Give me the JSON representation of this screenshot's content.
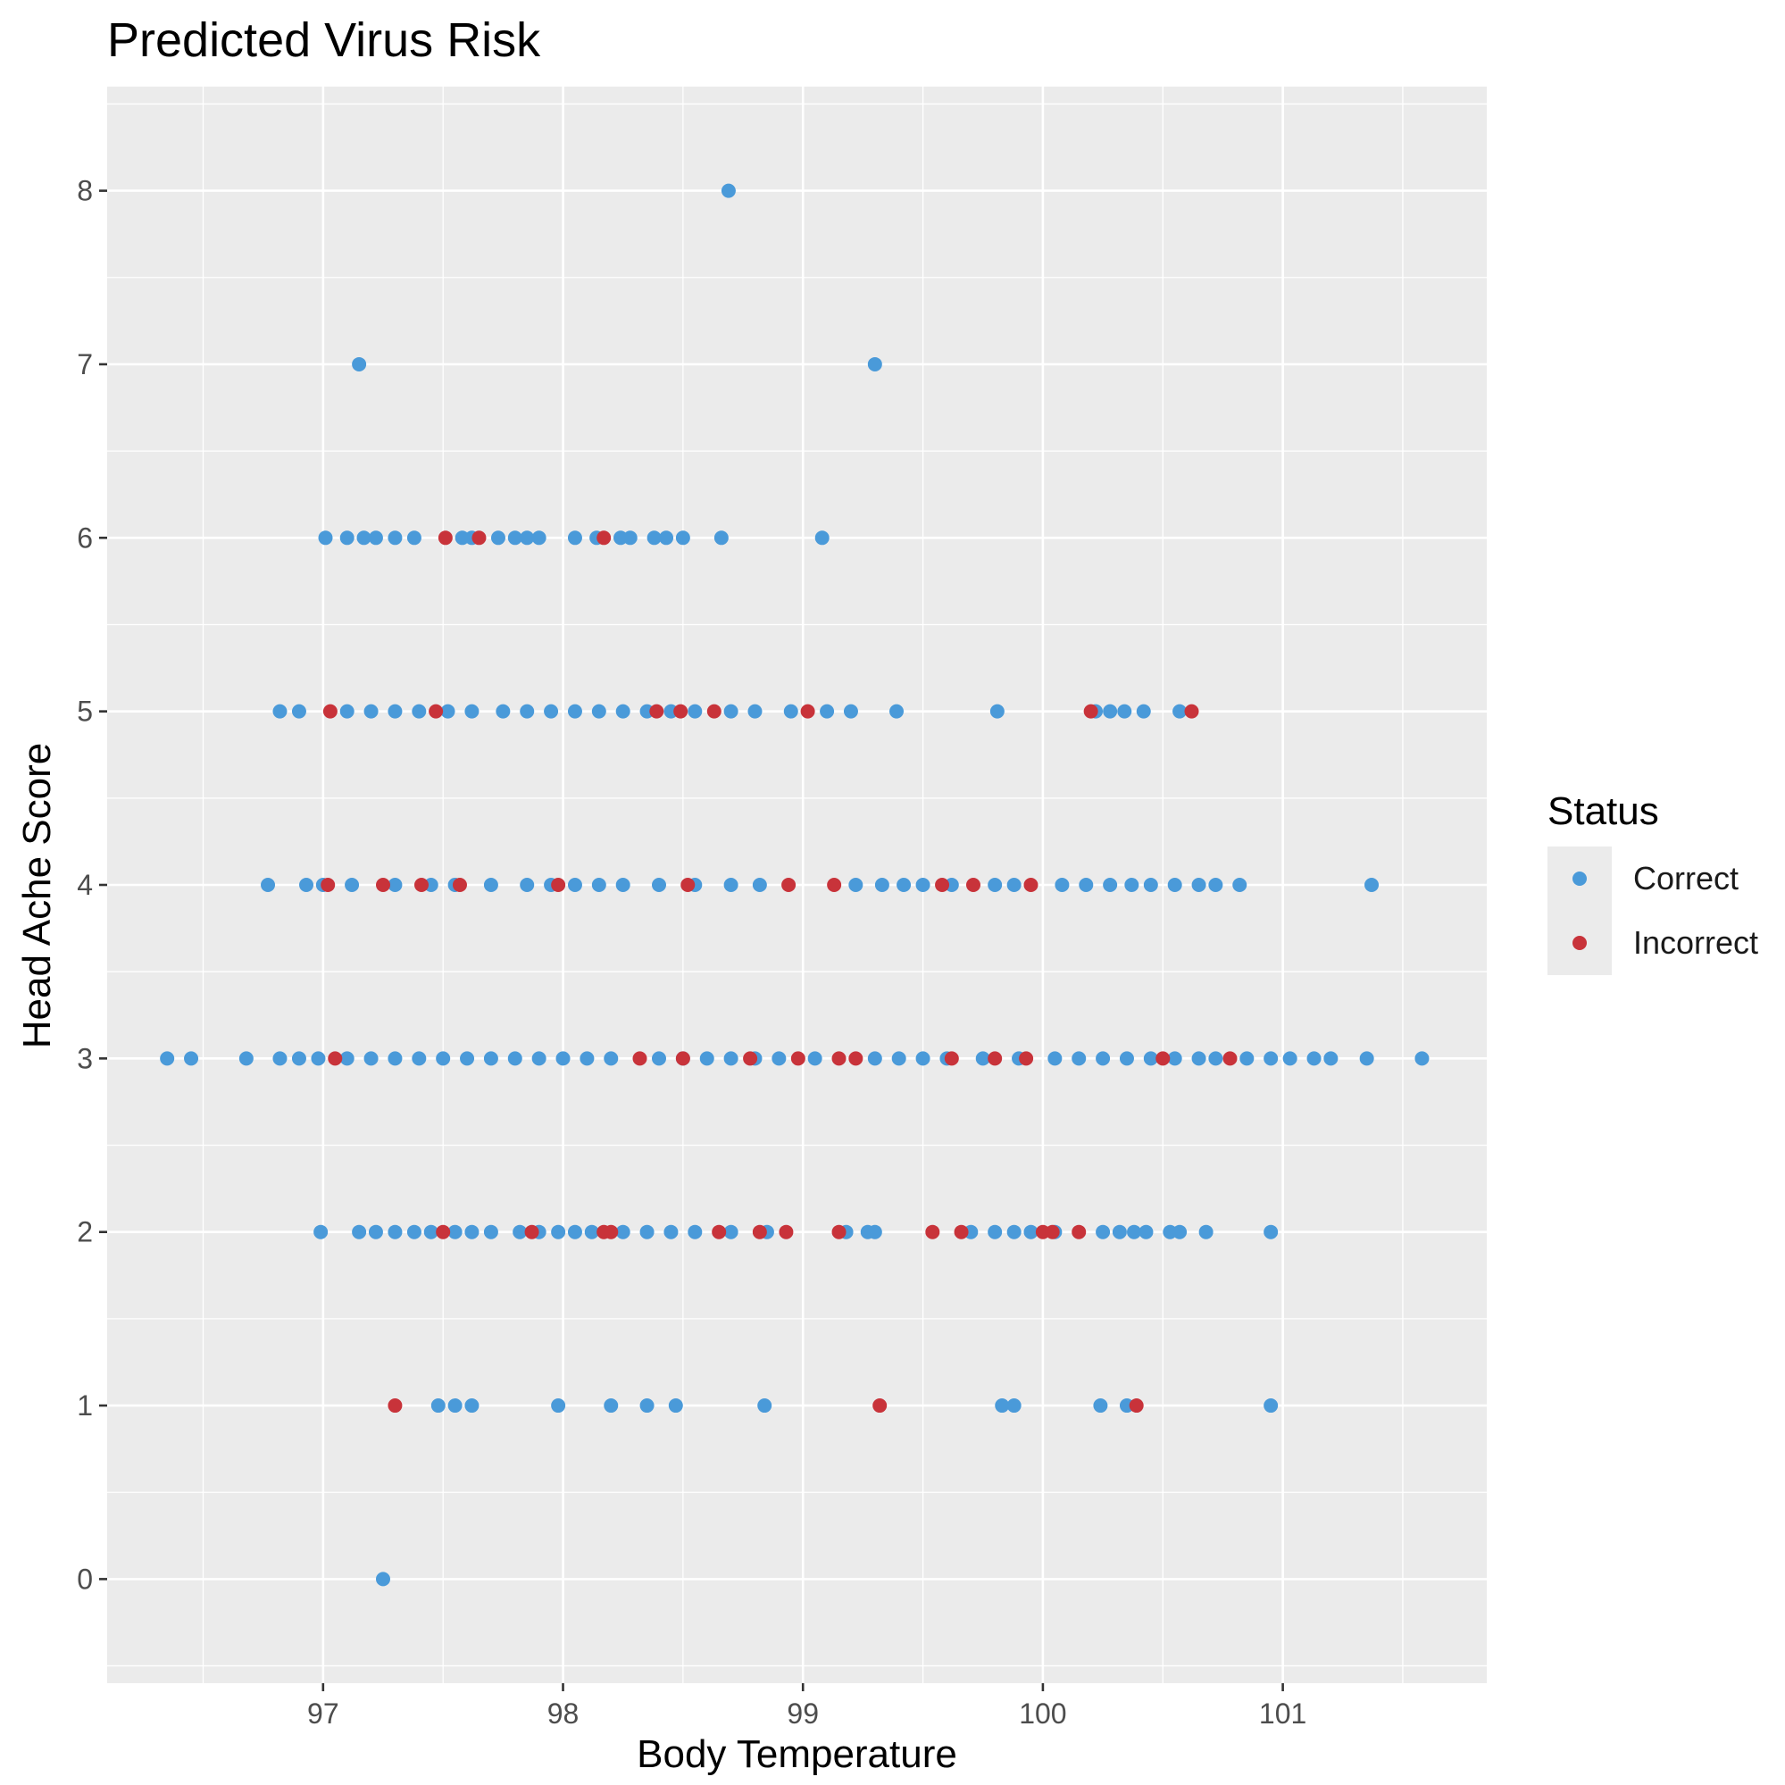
{
  "chart_data": {
    "type": "scatter",
    "title": "Predicted Virus Risk",
    "xlabel": "Body Temperature",
    "ylabel": "Head Ache Score",
    "xlim": [
      96.1,
      101.85
    ],
    "ylim": [
      -0.6,
      8.6
    ],
    "xticks": [
      97,
      98,
      99,
      100,
      101
    ],
    "yticks": [
      0,
      1,
      2,
      3,
      4,
      5,
      6,
      7,
      8
    ],
    "grid": true,
    "legend": {
      "title": "Status",
      "position": "right",
      "entries": [
        {
          "label": "Correct",
          "color": "#4a9ad9"
        },
        {
          "label": "Incorrect",
          "color": "#c8333a"
        }
      ]
    },
    "series": [
      {
        "name": "Correct",
        "color": "#4a9ad9",
        "points": [
          [
            97.25,
            0
          ],
          [
            97.48,
            1
          ],
          [
            97.55,
            1
          ],
          [
            97.62,
            1
          ],
          [
            97.98,
            1
          ],
          [
            98.2,
            1
          ],
          [
            98.35,
            1
          ],
          [
            98.47,
            1
          ],
          [
            98.84,
            1
          ],
          [
            99.83,
            1
          ],
          [
            99.88,
            1
          ],
          [
            100.24,
            1
          ],
          [
            100.35,
            1
          ],
          [
            100.95,
            1
          ],
          [
            96.99,
            2
          ],
          [
            97.15,
            2
          ],
          [
            97.22,
            2
          ],
          [
            97.3,
            2
          ],
          [
            97.38,
            2
          ],
          [
            97.45,
            2
          ],
          [
            97.55,
            2
          ],
          [
            97.62,
            2
          ],
          [
            97.7,
            2
          ],
          [
            97.82,
            2
          ],
          [
            97.9,
            2
          ],
          [
            97.98,
            2
          ],
          [
            98.05,
            2
          ],
          [
            98.12,
            2
          ],
          [
            98.25,
            2
          ],
          [
            98.35,
            2
          ],
          [
            98.45,
            2
          ],
          [
            98.55,
            2
          ],
          [
            98.7,
            2
          ],
          [
            98.85,
            2
          ],
          [
            99.18,
            2
          ],
          [
            99.27,
            2
          ],
          [
            99.3,
            2
          ],
          [
            99.7,
            2
          ],
          [
            99.8,
            2
          ],
          [
            99.88,
            2
          ],
          [
            99.95,
            2
          ],
          [
            100.05,
            2
          ],
          [
            100.25,
            2
          ],
          [
            100.32,
            2
          ],
          [
            100.38,
            2
          ],
          [
            100.43,
            2
          ],
          [
            100.53,
            2
          ],
          [
            100.57,
            2
          ],
          [
            100.68,
            2
          ],
          [
            100.95,
            2
          ],
          [
            96.35,
            3
          ],
          [
            96.45,
            3
          ],
          [
            96.68,
            3
          ],
          [
            96.82,
            3
          ],
          [
            96.9,
            3
          ],
          [
            96.98,
            3
          ],
          [
            97.1,
            3
          ],
          [
            97.2,
            3
          ],
          [
            97.3,
            3
          ],
          [
            97.4,
            3
          ],
          [
            97.5,
            3
          ],
          [
            97.6,
            3
          ],
          [
            97.7,
            3
          ],
          [
            97.8,
            3
          ],
          [
            97.9,
            3
          ],
          [
            98.0,
            3
          ],
          [
            98.1,
            3
          ],
          [
            98.2,
            3
          ],
          [
            98.4,
            3
          ],
          [
            98.5,
            3
          ],
          [
            98.6,
            3
          ],
          [
            98.7,
            3
          ],
          [
            98.8,
            3
          ],
          [
            98.9,
            3
          ],
          [
            99.05,
            3
          ],
          [
            99.3,
            3
          ],
          [
            99.4,
            3
          ],
          [
            99.5,
            3
          ],
          [
            99.6,
            3
          ],
          [
            99.75,
            3
          ],
          [
            99.9,
            3
          ],
          [
            100.05,
            3
          ],
          [
            100.15,
            3
          ],
          [
            100.25,
            3
          ],
          [
            100.35,
            3
          ],
          [
            100.45,
            3
          ],
          [
            100.55,
            3
          ],
          [
            100.65,
            3
          ],
          [
            100.72,
            3
          ],
          [
            100.85,
            3
          ],
          [
            100.95,
            3
          ],
          [
            101.03,
            3
          ],
          [
            101.13,
            3
          ],
          [
            101.2,
            3
          ],
          [
            101.35,
            3
          ],
          [
            101.58,
            3
          ],
          [
            96.77,
            4
          ],
          [
            96.93,
            4
          ],
          [
            97.0,
            4
          ],
          [
            97.12,
            4
          ],
          [
            97.3,
            4
          ],
          [
            97.45,
            4
          ],
          [
            97.55,
            4
          ],
          [
            97.7,
            4
          ],
          [
            97.85,
            4
          ],
          [
            97.95,
            4
          ],
          [
            98.05,
            4
          ],
          [
            98.15,
            4
          ],
          [
            98.25,
            4
          ],
          [
            98.4,
            4
          ],
          [
            98.55,
            4
          ],
          [
            98.7,
            4
          ],
          [
            98.82,
            4
          ],
          [
            99.22,
            4
          ],
          [
            99.33,
            4
          ],
          [
            99.42,
            4
          ],
          [
            99.5,
            4
          ],
          [
            99.62,
            4
          ],
          [
            99.8,
            4
          ],
          [
            99.88,
            4
          ],
          [
            100.08,
            4
          ],
          [
            100.18,
            4
          ],
          [
            100.28,
            4
          ],
          [
            100.37,
            4
          ],
          [
            100.45,
            4
          ],
          [
            100.55,
            4
          ],
          [
            100.65,
            4
          ],
          [
            100.72,
            4
          ],
          [
            100.82,
            4
          ],
          [
            101.37,
            4
          ],
          [
            96.82,
            5
          ],
          [
            96.9,
            5
          ],
          [
            97.1,
            5
          ],
          [
            97.2,
            5
          ],
          [
            97.3,
            5
          ],
          [
            97.4,
            5
          ],
          [
            97.52,
            5
          ],
          [
            97.62,
            5
          ],
          [
            97.75,
            5
          ],
          [
            97.85,
            5
          ],
          [
            97.95,
            5
          ],
          [
            98.05,
            5
          ],
          [
            98.15,
            5
          ],
          [
            98.25,
            5
          ],
          [
            98.35,
            5
          ],
          [
            98.45,
            5
          ],
          [
            98.55,
            5
          ],
          [
            98.7,
            5
          ],
          [
            98.8,
            5
          ],
          [
            98.95,
            5
          ],
          [
            99.1,
            5
          ],
          [
            99.2,
            5
          ],
          [
            99.39,
            5
          ],
          [
            99.81,
            5
          ],
          [
            100.22,
            5
          ],
          [
            100.28,
            5
          ],
          [
            100.34,
            5
          ],
          [
            100.42,
            5
          ],
          [
            100.57,
            5
          ],
          [
            97.01,
            6
          ],
          [
            97.1,
            6
          ],
          [
            97.17,
            6
          ],
          [
            97.22,
            6
          ],
          [
            97.3,
            6
          ],
          [
            97.38,
            6
          ],
          [
            97.58,
            6
          ],
          [
            97.62,
            6
          ],
          [
            97.73,
            6
          ],
          [
            97.8,
            6
          ],
          [
            97.85,
            6
          ],
          [
            97.9,
            6
          ],
          [
            98.05,
            6
          ],
          [
            98.14,
            6
          ],
          [
            98.24,
            6
          ],
          [
            98.28,
            6
          ],
          [
            98.38,
            6
          ],
          [
            98.43,
            6
          ],
          [
            98.5,
            6
          ],
          [
            98.66,
            6
          ],
          [
            99.08,
            6
          ],
          [
            97.15,
            7
          ],
          [
            99.3,
            7
          ],
          [
            98.69,
            8
          ]
        ]
      },
      {
        "name": "Incorrect",
        "color": "#c8333a",
        "points": [
          [
            97.3,
            1
          ],
          [
            99.32,
            1
          ],
          [
            100.39,
            1
          ],
          [
            97.5,
            2
          ],
          [
            97.87,
            2
          ],
          [
            98.17,
            2
          ],
          [
            98.2,
            2
          ],
          [
            98.65,
            2
          ],
          [
            98.82,
            2
          ],
          [
            98.93,
            2
          ],
          [
            99.15,
            2
          ],
          [
            99.54,
            2
          ],
          [
            99.66,
            2
          ],
          [
            100.0,
            2
          ],
          [
            100.04,
            2
          ],
          [
            100.15,
            2
          ],
          [
            97.05,
            3
          ],
          [
            98.32,
            3
          ],
          [
            98.5,
            3
          ],
          [
            98.78,
            3
          ],
          [
            98.98,
            3
          ],
          [
            99.15,
            3
          ],
          [
            99.22,
            3
          ],
          [
            99.62,
            3
          ],
          [
            99.8,
            3
          ],
          [
            99.93,
            3
          ],
          [
            100.5,
            3
          ],
          [
            100.78,
            3
          ],
          [
            97.02,
            4
          ],
          [
            97.25,
            4
          ],
          [
            97.41,
            4
          ],
          [
            97.57,
            4
          ],
          [
            97.98,
            4
          ],
          [
            98.52,
            4
          ],
          [
            98.94,
            4
          ],
          [
            99.13,
            4
          ],
          [
            99.58,
            4
          ],
          [
            99.71,
            4
          ],
          [
            99.95,
            4
          ],
          [
            97.03,
            5
          ],
          [
            97.47,
            5
          ],
          [
            98.39,
            5
          ],
          [
            98.49,
            5
          ],
          [
            98.63,
            5
          ],
          [
            99.02,
            5
          ],
          [
            100.2,
            5
          ],
          [
            100.62,
            5
          ],
          [
            97.51,
            6
          ],
          [
            97.65,
            6
          ],
          [
            98.17,
            6
          ]
        ]
      }
    ]
  }
}
